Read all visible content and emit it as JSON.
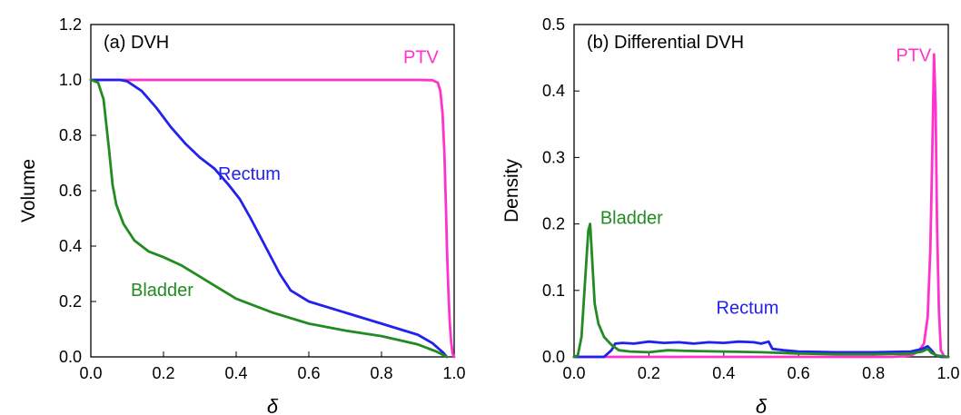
{
  "chart_data": [
    {
      "type": "line",
      "panel_label": "(a) DVH",
      "xlabel": "δ",
      "ylabel": "Volume",
      "xlim": [
        0,
        1
      ],
      "ylim": [
        0,
        1.2
      ],
      "x_ticks": [
        0.0,
        0.2,
        0.4,
        0.6,
        0.8,
        1.0
      ],
      "x_tick_labels": [
        "0.0",
        "0.2",
        "0.4",
        "0.6",
        "0.8",
        "1.0"
      ],
      "y_ticks": [
        0.0,
        0.2,
        0.4,
        0.6,
        0.8,
        1.0,
        1.2
      ],
      "y_tick_labels": [
        "0.0",
        "0.2",
        "0.4",
        "0.6",
        "0.8",
        "1.0",
        "1.2"
      ],
      "grid": false,
      "series": [
        {
          "name": "PTV",
          "color": "#ff33cc",
          "points": [
            [
              0,
              1
            ],
            [
              0.1,
              1
            ],
            [
              0.3,
              1
            ],
            [
              0.5,
              1
            ],
            [
              0.7,
              1
            ],
            [
              0.9,
              1
            ],
            [
              0.94,
              0.999
            ],
            [
              0.955,
              0.99
            ],
            [
              0.962,
              0.96
            ],
            [
              0.968,
              0.88
            ],
            [
              0.973,
              0.74
            ],
            [
              0.977,
              0.56
            ],
            [
              0.98,
              0.4
            ],
            [
              0.984,
              0.24
            ],
            [
              0.988,
              0.12
            ],
            [
              0.992,
              0.05
            ],
            [
              0.996,
              0.01
            ],
            [
              1.0,
              0
            ]
          ]
        },
        {
          "name": "Rectum",
          "color": "#2222ee",
          "points": [
            [
              0,
              1
            ],
            [
              0.08,
              1
            ],
            [
              0.1,
              0.995
            ],
            [
              0.14,
              0.96
            ],
            [
              0.18,
              0.9
            ],
            [
              0.22,
              0.83
            ],
            [
              0.26,
              0.77
            ],
            [
              0.3,
              0.72
            ],
            [
              0.34,
              0.68
            ],
            [
              0.38,
              0.62
            ],
            [
              0.41,
              0.57
            ],
            [
              0.44,
              0.5
            ],
            [
              0.48,
              0.4
            ],
            [
              0.52,
              0.3
            ],
            [
              0.55,
              0.24
            ],
            [
              0.6,
              0.2
            ],
            [
              0.7,
              0.16
            ],
            [
              0.8,
              0.12
            ],
            [
              0.9,
              0.08
            ],
            [
              0.94,
              0.05
            ],
            [
              0.97,
              0.015
            ],
            [
              0.98,
              0
            ]
          ]
        },
        {
          "name": "Bladder",
          "color": "#228b22",
          "points": [
            [
              0,
              1
            ],
            [
              0.02,
              0.99
            ],
            [
              0.035,
              0.93
            ],
            [
              0.05,
              0.75
            ],
            [
              0.06,
              0.62
            ],
            [
              0.07,
              0.55
            ],
            [
              0.09,
              0.48
            ],
            [
              0.12,
              0.42
            ],
            [
              0.16,
              0.38
            ],
            [
              0.2,
              0.36
            ],
            [
              0.25,
              0.33
            ],
            [
              0.3,
              0.29
            ],
            [
              0.35,
              0.25
            ],
            [
              0.4,
              0.21
            ],
            [
              0.5,
              0.16
            ],
            [
              0.6,
              0.12
            ],
            [
              0.7,
              0.095
            ],
            [
              0.8,
              0.075
            ],
            [
              0.9,
              0.045
            ],
            [
              0.95,
              0.02
            ],
            [
              0.98,
              0
            ]
          ]
        }
      ],
      "annotations": [
        {
          "text": "PTV",
          "color": "#ff33cc",
          "x": 0.86,
          "y": 1.06
        },
        {
          "text": "Rectum",
          "color": "#2222ee",
          "x": 0.35,
          "y": 0.64
        },
        {
          "text": "Bladder",
          "color": "#228b22",
          "x": 0.11,
          "y": 0.22
        }
      ]
    },
    {
      "type": "line",
      "panel_label": "(b) Differential DVH",
      "xlabel": "δ",
      "ylabel": "Density",
      "xlim": [
        0,
        1
      ],
      "ylim": [
        0,
        0.5
      ],
      "x_ticks": [
        0.0,
        0.2,
        0.4,
        0.6,
        0.8,
        1.0
      ],
      "x_tick_labels": [
        "0.0",
        "0.2",
        "0.4",
        "0.6",
        "0.8",
        "1.0"
      ],
      "y_ticks": [
        0.0,
        0.1,
        0.2,
        0.3,
        0.4,
        0.5
      ],
      "y_tick_labels": [
        "0.0",
        "0.1",
        "0.2",
        "0.3",
        "0.4",
        "0.5"
      ],
      "grid": false,
      "series": [
        {
          "name": "PTV",
          "color": "#ff33cc",
          "points": [
            [
              0,
              0
            ],
            [
              0.85,
              0
            ],
            [
              0.9,
              0.002
            ],
            [
              0.92,
              0.008
            ],
            [
              0.935,
              0.02
            ],
            [
              0.945,
              0.06
            ],
            [
              0.952,
              0.16
            ],
            [
              0.957,
              0.3
            ],
            [
              0.962,
              0.455
            ],
            [
              0.966,
              0.38
            ],
            [
              0.97,
              0.2
            ],
            [
              0.975,
              0.07
            ],
            [
              0.98,
              0.01
            ],
            [
              0.99,
              0
            ],
            [
              1.0,
              0
            ]
          ]
        },
        {
          "name": "Rectum",
          "color": "#2222ee",
          "points": [
            [
              0,
              0
            ],
            [
              0.08,
              0
            ],
            [
              0.1,
              0.01
            ],
            [
              0.11,
              0.02
            ],
            [
              0.13,
              0.021
            ],
            [
              0.16,
              0.02
            ],
            [
              0.2,
              0.023
            ],
            [
              0.24,
              0.021
            ],
            [
              0.28,
              0.022
            ],
            [
              0.32,
              0.02
            ],
            [
              0.36,
              0.022
            ],
            [
              0.4,
              0.021
            ],
            [
              0.44,
              0.023
            ],
            [
              0.48,
              0.022
            ],
            [
              0.5,
              0.02
            ],
            [
              0.52,
              0.023
            ],
            [
              0.53,
              0.012
            ],
            [
              0.56,
              0.01
            ],
            [
              0.6,
              0.008
            ],
            [
              0.7,
              0.007
            ],
            [
              0.8,
              0.007
            ],
            [
              0.9,
              0.008
            ],
            [
              0.93,
              0.012
            ],
            [
              0.945,
              0.016
            ],
            [
              0.955,
              0.01
            ],
            [
              0.965,
              0.003
            ],
            [
              0.98,
              0
            ],
            [
              1.0,
              0
            ]
          ]
        },
        {
          "name": "Bladder",
          "color": "#228b22",
          "points": [
            [
              0,
              0
            ],
            [
              0.01,
              0.002
            ],
            [
              0.02,
              0.03
            ],
            [
              0.03,
              0.12
            ],
            [
              0.038,
              0.19
            ],
            [
              0.043,
              0.2
            ],
            [
              0.048,
              0.15
            ],
            [
              0.055,
              0.08
            ],
            [
              0.065,
              0.05
            ],
            [
              0.08,
              0.03
            ],
            [
              0.1,
              0.018
            ],
            [
              0.12,
              0.01
            ],
            [
              0.15,
              0.008
            ],
            [
              0.2,
              0.007
            ],
            [
              0.25,
              0.01
            ],
            [
              0.3,
              0.009
            ],
            [
              0.4,
              0.008
            ],
            [
              0.5,
              0.007
            ],
            [
              0.6,
              0.005
            ],
            [
              0.7,
              0.004
            ],
            [
              0.8,
              0.004
            ],
            [
              0.9,
              0.005
            ],
            [
              0.93,
              0.008
            ],
            [
              0.945,
              0.012
            ],
            [
              0.955,
              0.006
            ],
            [
              0.97,
              0.002
            ],
            [
              1.0,
              0
            ]
          ]
        }
      ],
      "annotations": [
        {
          "text": "PTV",
          "color": "#ff33cc",
          "x": 0.86,
          "y": 0.445
        },
        {
          "text": "Bladder",
          "color": "#228b22",
          "x": 0.07,
          "y": 0.2
        },
        {
          "text": "Rectum",
          "color": "#2222ee",
          "x": 0.38,
          "y": 0.065
        }
      ]
    }
  ]
}
